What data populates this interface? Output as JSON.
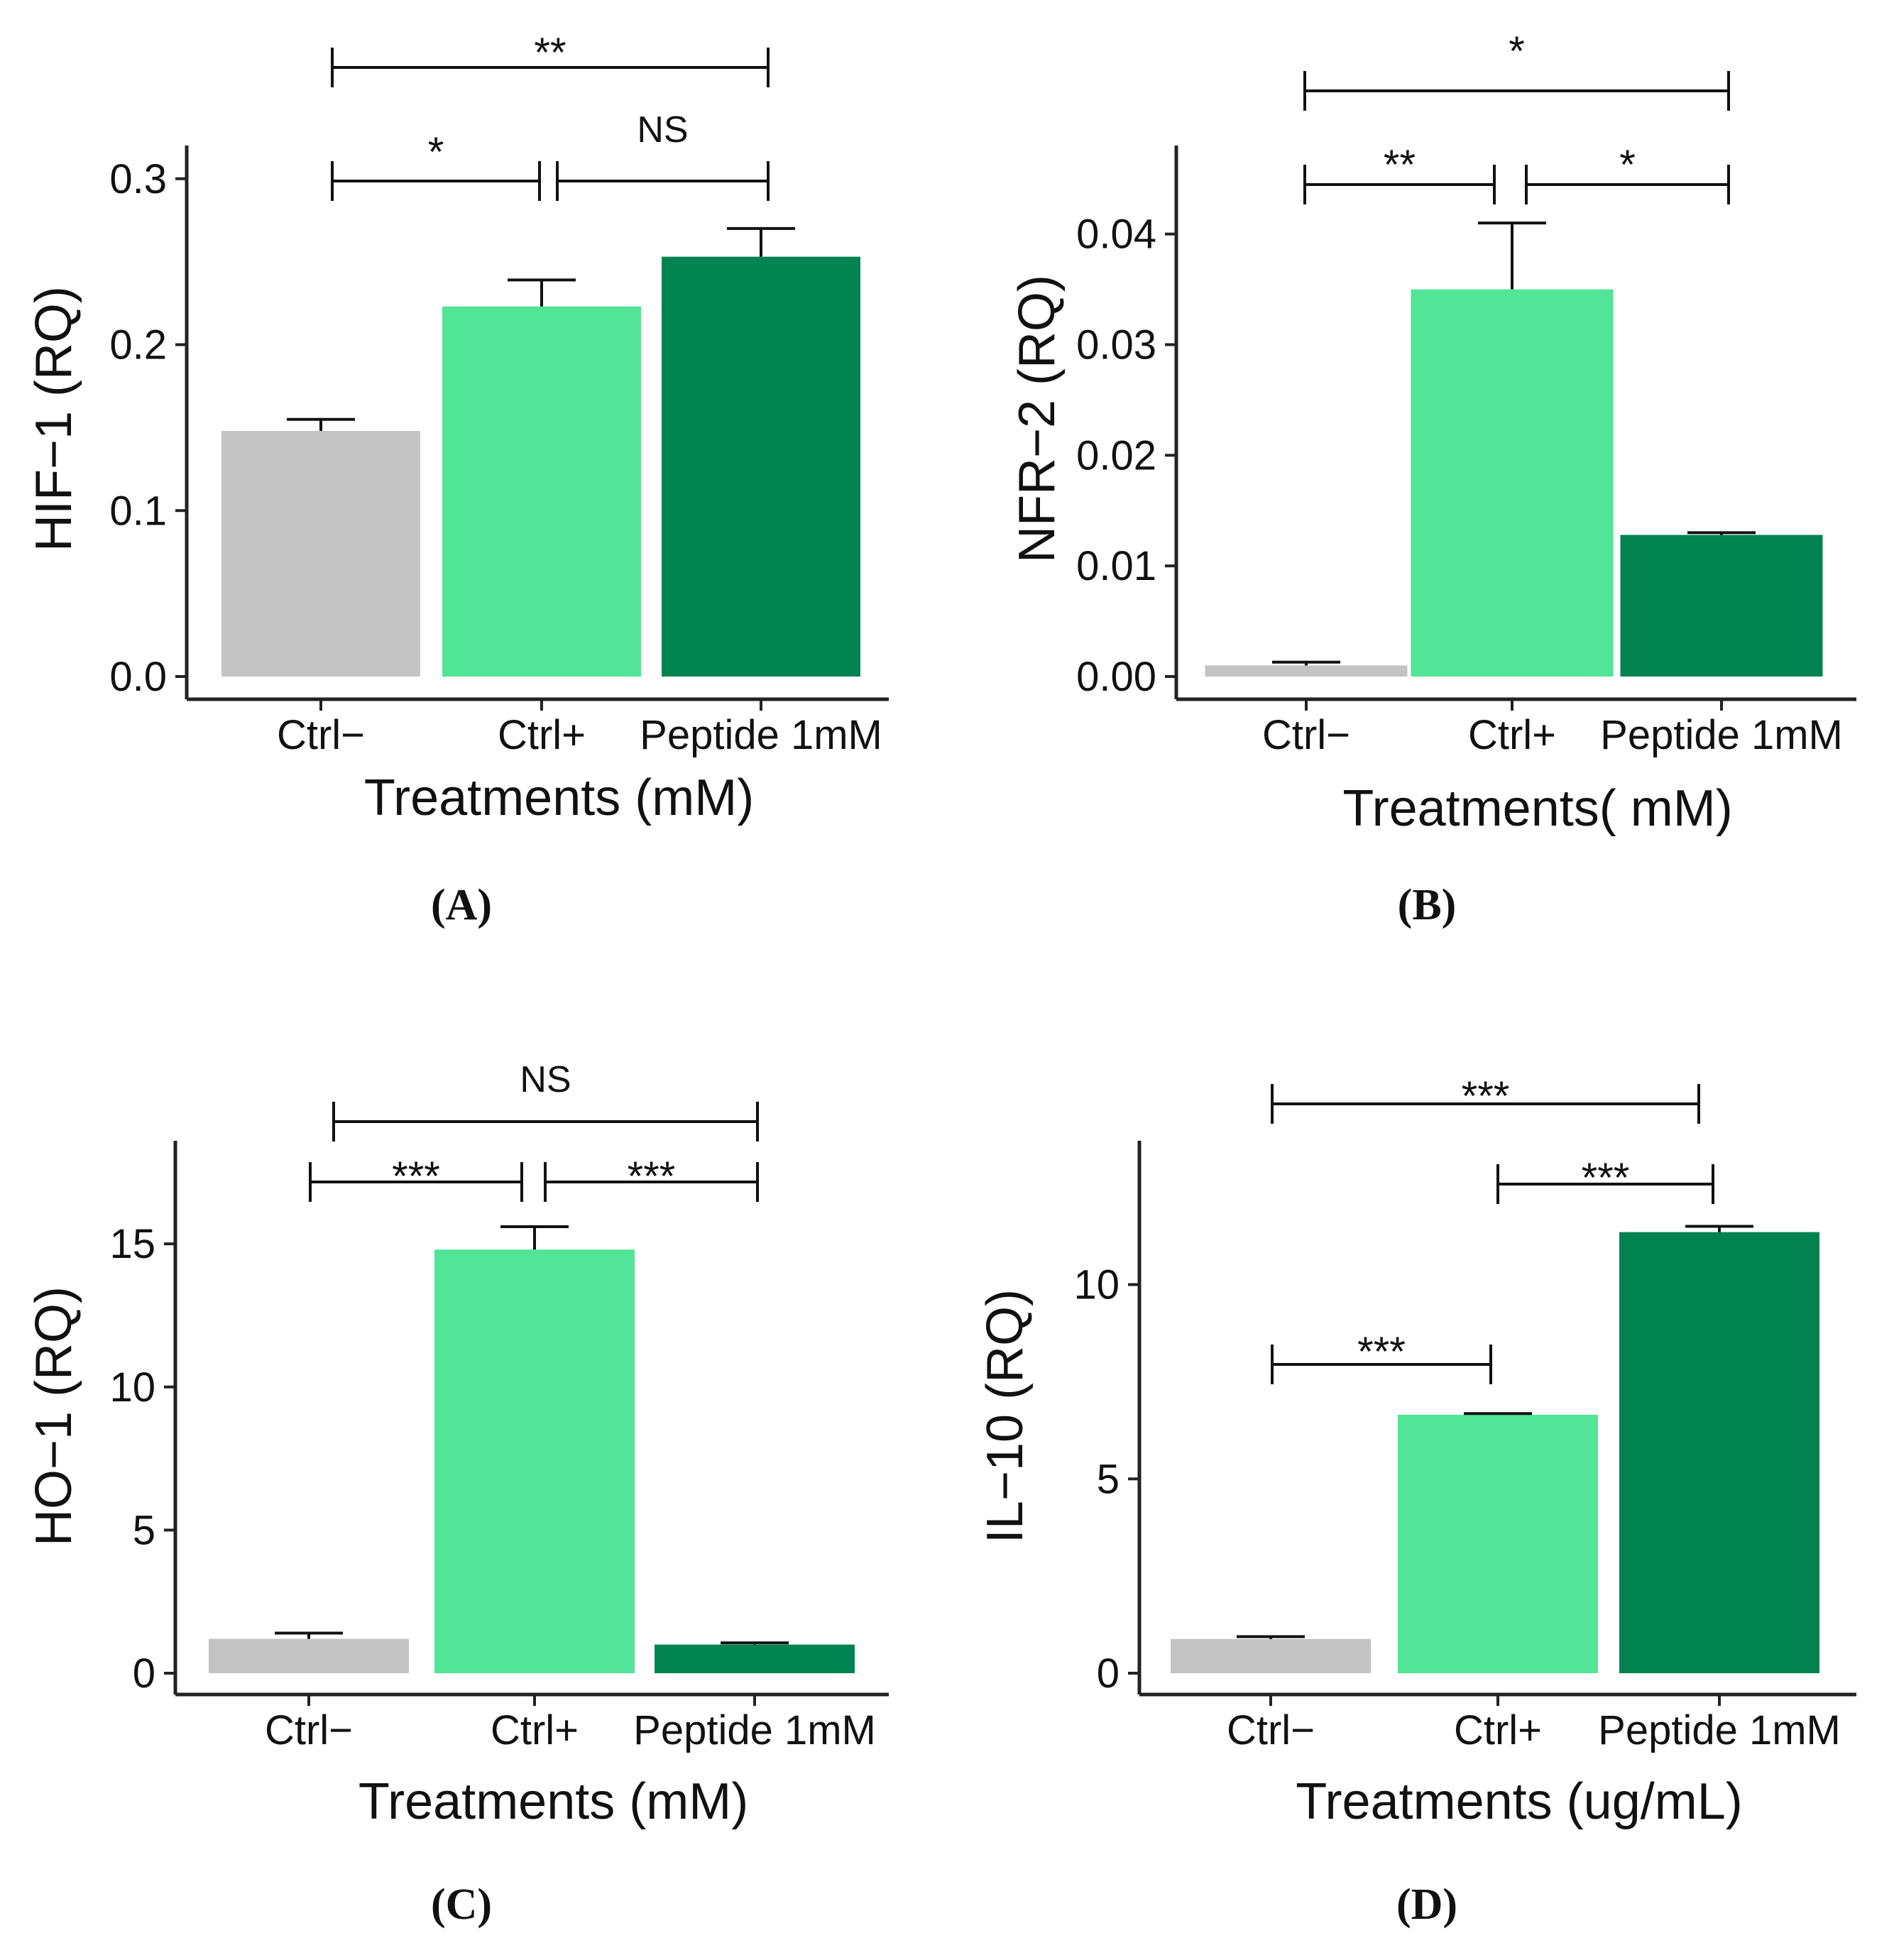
{
  "figure": {
    "panel_labels": [
      "(A)",
      "(B)",
      "(C)",
      "(D)"
    ]
  },
  "colors": {
    "ctrl_minus": "#c3c3c3",
    "ctrl_plus": "#52e597",
    "peptide": "#008351",
    "axis": "#222222"
  },
  "chart_data": [
    {
      "id": "A",
      "type": "bar",
      "ylabel": "HIF−1 (RQ)",
      "xlabel": "Treatments (mM)",
      "categories": [
        "Ctrl−",
        "Ctrl+",
        "Peptide 1mM"
      ],
      "values": [
        0.148,
        0.223,
        0.253
      ],
      "errors": [
        0.007,
        0.016,
        0.017
      ],
      "ylim": [
        0,
        0.32
      ],
      "yticks": [
        0.0,
        0.1,
        0.2,
        0.3
      ],
      "yticklabels": [
        "0.0",
        "0.1",
        "0.2",
        "0.3"
      ],
      "significance": [
        {
          "from": 0,
          "to": 1,
          "label": "*"
        },
        {
          "from": 1,
          "to": 2,
          "label": "NS"
        },
        {
          "from": 0,
          "to": 2,
          "label": "**"
        }
      ]
    },
    {
      "id": "B",
      "type": "bar",
      "ylabel": "NFR−2 (RQ)",
      "xlabel": "Treatments( mM)",
      "categories": [
        "Ctrl−",
        "Ctrl+",
        "Peptide 1mM"
      ],
      "values": [
        0.001,
        0.035,
        0.0128
      ],
      "errors": [
        0.0003,
        0.006,
        0.0002
      ],
      "ylim": [
        0,
        0.048
      ],
      "yticks": [
        0.0,
        0.01,
        0.02,
        0.03,
        0.04
      ],
      "yticklabels": [
        "0.00",
        "0.01",
        "0.02",
        "0.03",
        "0.04"
      ],
      "significance": [
        {
          "from": 0,
          "to": 1,
          "label": "**"
        },
        {
          "from": 1,
          "to": 2,
          "label": "*"
        },
        {
          "from": 0,
          "to": 2,
          "label": "*"
        }
      ]
    },
    {
      "id": "C",
      "type": "bar",
      "ylabel": "HO−1 (RQ)",
      "xlabel": "Treatments (mM)",
      "categories": [
        "Ctrl−",
        "Ctrl+",
        "Peptide 1mM"
      ],
      "values": [
        1.2,
        14.8,
        1.0
      ],
      "errors": [
        0.2,
        0.8,
        0.06
      ],
      "ylim": [
        0,
        18.6
      ],
      "yticks": [
        0,
        5,
        10,
        15
      ],
      "yticklabels": [
        "0",
        "5",
        "10",
        "15"
      ],
      "significance": [
        {
          "from": 0,
          "to": 1,
          "label": "***"
        },
        {
          "from": 1,
          "to": 2,
          "label": "***"
        },
        {
          "from": 0,
          "to": 2,
          "label": "NS"
        }
      ]
    },
    {
      "id": "D",
      "type": "bar",
      "ylabel": "IL−10 (RQ)",
      "xlabel": "Treatments (ug/mL)",
      "categories": [
        "Ctrl−",
        "Ctrl+",
        "Peptide 1mM"
      ],
      "values": [
        0.88,
        6.65,
        11.35
      ],
      "errors": [
        0.06,
        0.03,
        0.15
      ],
      "ylim": [
        0,
        13.7
      ],
      "yticks": [
        0,
        5,
        10
      ],
      "yticklabels": [
        "0",
        "5",
        "10"
      ],
      "significance": [
        {
          "from": 0,
          "to": 1,
          "label": "***"
        },
        {
          "from": 1,
          "to": 2,
          "label": "***"
        },
        {
          "from": 0,
          "to": 2,
          "label": "***"
        }
      ]
    }
  ]
}
